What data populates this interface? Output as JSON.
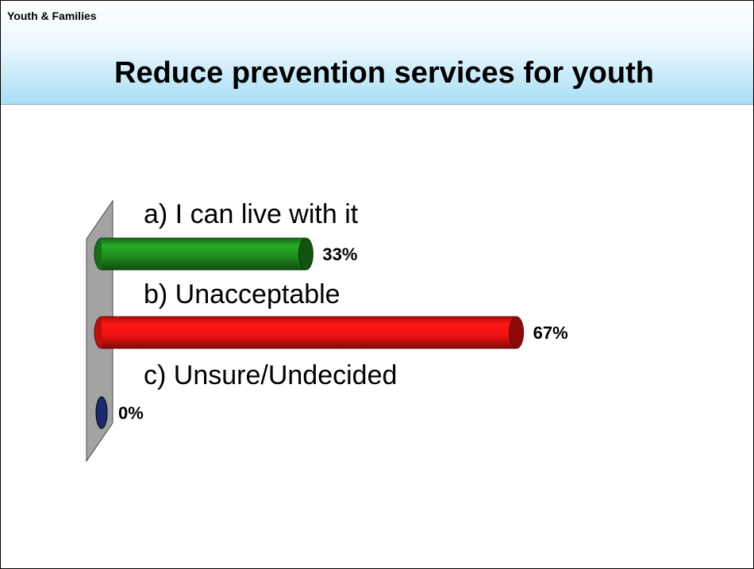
{
  "header": {
    "section": "Youth & Families",
    "title": "Reduce prevention services for youth"
  },
  "chart_data": {
    "type": "bar",
    "orientation": "horizontal",
    "title": "Reduce prevention services for youth",
    "categories": [
      "a)  I can live with it",
      "b)  Unacceptable",
      "c)  Unsure/Undecided"
    ],
    "values": [
      33,
      67,
      0
    ],
    "value_labels": [
      "33%",
      "67%",
      "0%"
    ],
    "unit": "%",
    "xlim": [
      0,
      100
    ],
    "colors": [
      "#1e8a1e",
      "#ee1111",
      "#1a2a6e"
    ],
    "grid": false,
    "legend": "none"
  }
}
